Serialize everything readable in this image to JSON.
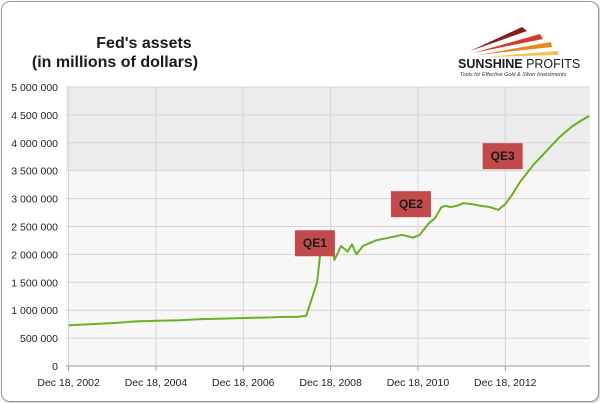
{
  "title_lines": [
    "Fed's assets",
    "(in millions of dollars)"
  ],
  "logo": {
    "name_part1": "SUNSHINE",
    "name_part2": " PROFITS",
    "tagline": "Tools for Effective Gold & Silver Investments",
    "colors": [
      "#8b1a1a",
      "#d23a2a",
      "#e8891c",
      "#f2c14e"
    ]
  },
  "colors": {
    "line": "#6ab023",
    "band_dark": "#ececec",
    "band_light": "#f7f7f7",
    "grid": "#d4d4d4",
    "label_box": "#c14a4a"
  },
  "chart_data": {
    "type": "line",
    "ylim": [
      0,
      5000000
    ],
    "xlim": [
      2002.9,
      2014.9
    ],
    "y_ticks": [
      "0",
      "500 000",
      "1 000 000",
      "1 500 000",
      "2 000 000",
      "2 500 000",
      "3 000 000",
      "3 500 000",
      "4 000 000",
      "4 500 000",
      "5 000 000"
    ],
    "y_tick_values": [
      0,
      500000,
      1000000,
      1500000,
      2000000,
      2500000,
      3000000,
      3500000,
      4000000,
      4500000,
      5000000
    ],
    "x_ticks": [
      "Dec 18, 2002",
      "Dec 18, 2004",
      "Dec 18, 2006",
      "Dec 18, 2008",
      "Dec 18, 2010",
      "Dec 18, 2012"
    ],
    "x_tick_values": [
      2002.96,
      2004.96,
      2006.96,
      2008.96,
      2010.96,
      2012.96
    ],
    "series": [
      {
        "x": [
          2002.96,
          2003.5,
          2004.0,
          2004.5,
          2005.0,
          2005.5,
          2006.0,
          2006.5,
          2007.0,
          2007.5,
          2007.9,
          2008.2,
          2008.4,
          2008.65,
          2008.75,
          2008.85,
          2008.95,
          2009.05,
          2009.2,
          2009.35,
          2009.45,
          2009.55,
          2009.7,
          2009.85,
          2010.0,
          2010.3,
          2010.6,
          2010.85,
          2011.0,
          2011.2,
          2011.35,
          2011.5,
          2011.6,
          2011.7,
          2011.85,
          2012.0,
          2012.2,
          2012.4,
          2012.6,
          2012.8,
          2012.96,
          2013.1,
          2013.3,
          2013.6,
          2013.9,
          2014.2,
          2014.5,
          2014.7,
          2014.88
        ],
        "y": [
          730000,
          750000,
          770000,
          800000,
          810000,
          820000,
          840000,
          850000,
          860000,
          870000,
          880000,
          880000,
          900000,
          1500000,
          2200000,
          2250000,
          2230000,
          1900000,
          2150000,
          2050000,
          2180000,
          2000000,
          2150000,
          2200000,
          2250000,
          2300000,
          2350000,
          2300000,
          2350000,
          2550000,
          2650000,
          2850000,
          2870000,
          2850000,
          2870000,
          2920000,
          2900000,
          2870000,
          2850000,
          2800000,
          2900000,
          3050000,
          3300000,
          3600000,
          3850000,
          4100000,
          4300000,
          4400000,
          4480000
        ]
      }
    ],
    "annotations": [
      {
        "text": "QE1",
        "x": 2008.6,
        "y": 2200000
      },
      {
        "text": "QE2",
        "x": 2010.8,
        "y": 2900000
      },
      {
        "text": "QE3",
        "x": 2012.9,
        "y": 3760000
      }
    ]
  }
}
